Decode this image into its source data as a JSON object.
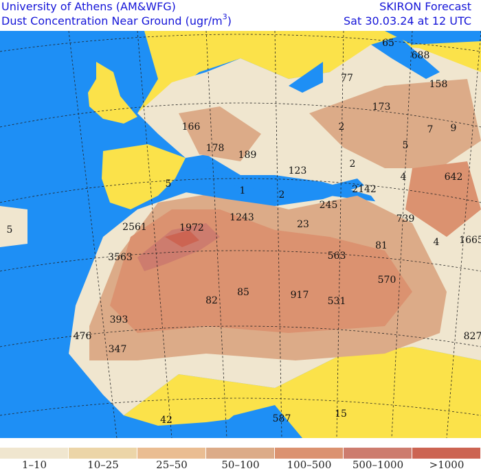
{
  "header": {
    "institution": "University of Athens (AM&WFG)",
    "product": "Dust Concentration Near Ground (ugr/m",
    "unit_sup": "3",
    "unit_close": ")",
    "model": "SKIRON Forecast",
    "valid_time": "Sat 30.03.24 at 12 UTC"
  },
  "colors": {
    "sea": "#1e8ff5",
    "no_dust": "#fbe24a",
    "border": "#1a1a1a",
    "title": "#1414d8"
  },
  "map_labels": [
    "65",
    "688",
    "77",
    "158",
    "173",
    "166",
    "2",
    "7",
    "9",
    "178",
    "189",
    "5",
    "2",
    "123",
    "4",
    "642",
    "2142",
    "1",
    "2",
    "5",
    "245",
    "5",
    "2561",
    "1972",
    "1243",
    "23",
    "739",
    "1665",
    "4",
    "81",
    "563",
    "3563",
    "570",
    "917",
    "85",
    "82",
    "531",
    "393",
    "476",
    "827",
    "347",
    "42",
    "587",
    "15"
  ],
  "legend": [
    {
      "label": "1–10",
      "color": "#f0e6cf"
    },
    {
      "label": "10–25",
      "color": "#ecd5a8"
    },
    {
      "label": "25–50",
      "color": "#eabd92"
    },
    {
      "label": "50–100",
      "color": "#dcab88"
    },
    {
      "label": "100–500",
      "color": "#db9270"
    },
    {
      "label": "500–1000",
      "color": "#cd7c6e"
    },
    {
      "label": ">1000",
      "color": "#cc6452"
    }
  ]
}
